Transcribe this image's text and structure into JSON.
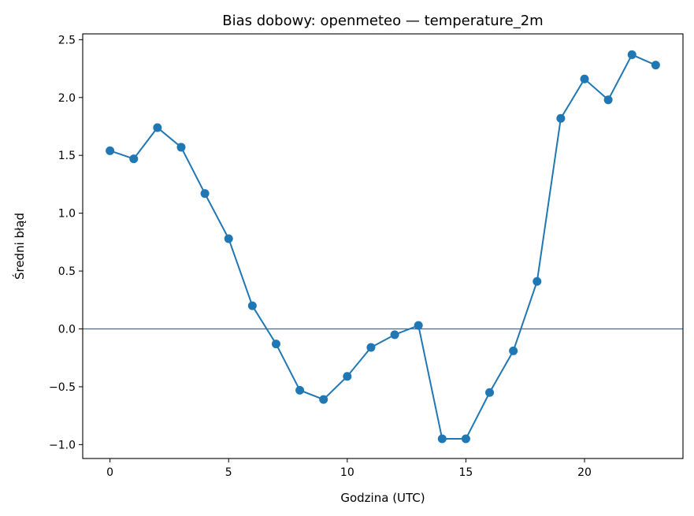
{
  "chart_data": {
    "type": "line",
    "title": "Bias dobowy: openmeteo — temperature_2m",
    "xlabel": "Godzina (UTC)",
    "ylabel": "Średni błąd",
    "xlim": [
      -1.15,
      24.15
    ],
    "ylim": [
      -1.12,
      2.55
    ],
    "xticks": [
      0,
      5,
      10,
      15,
      20
    ],
    "yticks": [
      2.5,
      2.0,
      1.5,
      1.0,
      0.5,
      0.0,
      -0.5,
      -1.0
    ],
    "xtick_labels": [
      "0",
      "5",
      "10",
      "15",
      "20"
    ],
    "ytick_labels": [
      "2.5",
      "2.0",
      "1.5",
      "1.0",
      "0.5",
      "0.0",
      "−0.5",
      "−1.0"
    ],
    "reference_line_y": 0.0,
    "grid": false,
    "series": [
      {
        "x": [
          0,
          1,
          2,
          3,
          4,
          5,
          6,
          7,
          8,
          9,
          10,
          11,
          12,
          13,
          14,
          15,
          16,
          17,
          18,
          19,
          20,
          21,
          22,
          23
        ],
        "y": [
          1.54,
          1.47,
          1.74,
          1.57,
          1.17,
          0.78,
          0.2,
          -0.13,
          -0.53,
          -0.61,
          -0.41,
          -0.16,
          -0.05,
          0.03,
          -0.95,
          -0.95,
          -0.55,
          -0.19,
          0.41,
          1.82,
          2.16,
          1.98,
          2.37,
          2.28
        ],
        "color": "#1f77b4"
      }
    ],
    "reference_line_color": "#1f77b4"
  }
}
